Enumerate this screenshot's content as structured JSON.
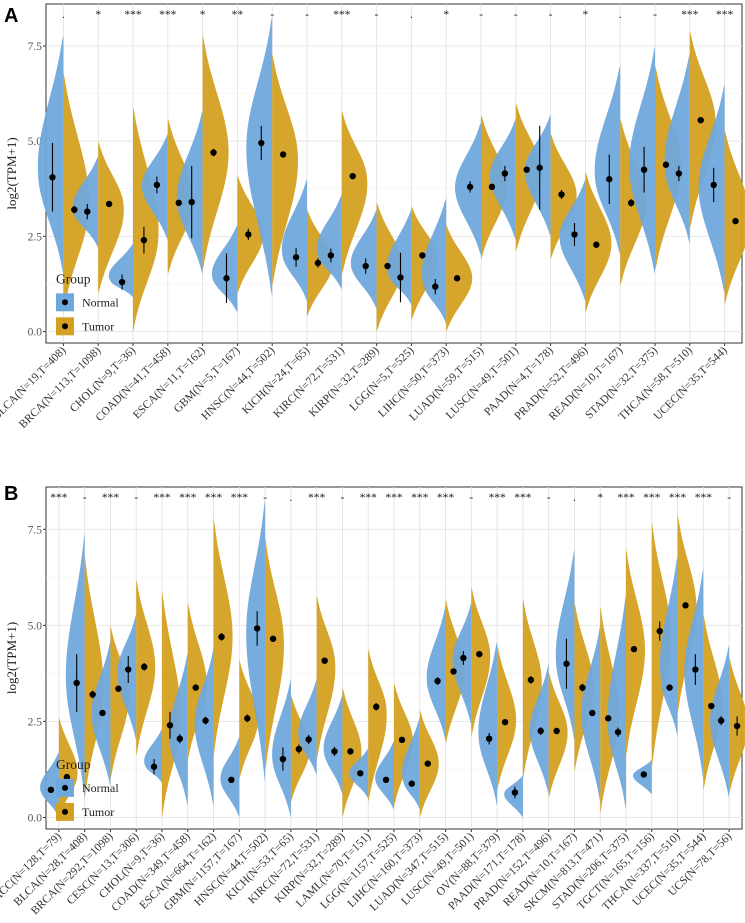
{
  "colors": {
    "normal": "#6fa8dc",
    "tumor": "#d4a021",
    "point": "#000000"
  },
  "chart_data": [
    {
      "type": "split-violin",
      "panel": "A",
      "title": "",
      "xlabel": "",
      "ylabel": "log2(TPM+1)",
      "ylim": [
        -0.3,
        8.6
      ],
      "yticks": [
        0.0,
        2.5,
        5.0,
        7.5
      ],
      "ytick_labels": [
        "0.0",
        "2.5",
        "5.0",
        "7.5"
      ],
      "legend": {
        "title": "Group",
        "items": [
          "Normal",
          "Tumor"
        ],
        "position": "bottom-left"
      },
      "categories": [
        "BLCA(N=19,T=408)",
        "BRCA(N=113,T=1098)",
        "CHOL(N=9,T=36)",
        "COAD(N=41,T=458)",
        "ESCA(N=11,T=162)",
        "GBM(N=5,T=167)",
        "HNSC(N=44,T=502)",
        "KICH(N=24,T=65)",
        "KIRC(N=72,T=531)",
        "KIRP(N=32,T=289)",
        "LGG(N=5,T=525)",
        "LIHC(N=50,T=373)",
        "LUAD(N=59,T=515)",
        "LUSC(N=49,T=501)",
        "PAAD(N=4,T=178)",
        "PRAD(N=52,T=496)",
        "READ(N=10,T=167)",
        "STAD(N=32,T=375)",
        "THCA(N=58,T=510)",
        "UCEC(N=35,T=544)"
      ],
      "significance": [
        ".",
        "*",
        "***",
        "***",
        "*",
        "**",
        "-",
        "-",
        "***",
        "-",
        ".",
        "*",
        "-",
        "-",
        "-",
        "*",
        ".",
        "-",
        "***",
        "***"
      ],
      "normal_mean": [
        4.05,
        3.15,
        1.3,
        3.85,
        3.4,
        1.4,
        4.95,
        1.95,
        2.0,
        1.72,
        1.42,
        1.18,
        3.8,
        4.15,
        4.3,
        2.55,
        4.0,
        4.25,
        4.15,
        3.85
      ],
      "normal_sd": [
        0.9,
        0.2,
        0.2,
        0.22,
        0.95,
        0.65,
        0.45,
        0.25,
        0.18,
        0.2,
        0.65,
        0.2,
        0.15,
        0.2,
        1.1,
        0.3,
        0.65,
        0.6,
        0.2,
        0.45
      ],
      "normal_min": [
        1.5,
        2.2,
        0.9,
        2.4,
        1.5,
        0.5,
        0.9,
        0.8,
        1.1,
        0.6,
        0.7,
        0.2,
        2.0,
        2.4,
        2.5,
        0.8,
        2.0,
        1.5,
        2.3,
        1.0
      ],
      "normal_max": [
        7.8,
        4.6,
        2.3,
        5.2,
        5.8,
        2.8,
        8.3,
        4.0,
        3.6,
        3.2,
        3.2,
        3.5,
        5.5,
        5.6,
        5.7,
        4.0,
        7.0,
        7.5,
        7.3,
        6.5
      ],
      "tumor_mean": [
        3.2,
        3.35,
        2.4,
        3.38,
        4.7,
        2.55,
        4.65,
        1.8,
        4.08,
        1.72,
        2.0,
        1.4,
        3.8,
        4.25,
        3.6,
        2.28,
        3.38,
        4.38,
        5.55,
        2.9
      ],
      "tumor_sd": [
        0.1,
        0.05,
        0.35,
        0.07,
        0.1,
        0.15,
        0.05,
        0.12,
        0.05,
        0.05,
        0.05,
        0.05,
        0.04,
        0.04,
        0.12,
        0.04,
        0.1,
        0.07,
        0.06,
        0.05
      ],
      "tumor_min": [
        0.5,
        1.0,
        0.0,
        1.5,
        1.6,
        1.0,
        1.2,
        0.4,
        1.5,
        0.0,
        0.3,
        0.0,
        1.9,
        2.1,
        1.9,
        0.5,
        1.2,
        1.6,
        2.7,
        0.7
      ],
      "tumor_max": [
        6.8,
        5.0,
        5.9,
        5.6,
        7.8,
        4.1,
        7.3,
        3.2,
        5.8,
        3.4,
        3.3,
        2.8,
        5.7,
        6.0,
        5.2,
        4.2,
        5.6,
        7.0,
        7.9,
        5.3
      ]
    },
    {
      "type": "split-violin",
      "panel": "B",
      "title": "",
      "xlabel": "",
      "ylabel": "log2(TPM+1)",
      "ylim": [
        -0.3,
        8.6
      ],
      "yticks": [
        0.0,
        2.5,
        5.0,
        7.5
      ],
      "ytick_labels": [
        "0.0",
        "2.5",
        "5.0",
        "7.5"
      ],
      "legend": {
        "title": "Group",
        "items": [
          "Normal",
          "Tumor"
        ],
        "position": "bottom-left"
      },
      "categories": [
        "ACC(N=128,T=79)",
        "BLCA(N=28,T=408)",
        "BRCA(N=292,T=1098)",
        "CESC(N=13,T=306)",
        "CHOL(N=9,T=36)",
        "COAD(N=349,T=458)",
        "ESCA(N=664,T=162)",
        "GBM(N=1157,T=167)",
        "HNSC(N=44,T=502)",
        "KICH(N=53,T=65)",
        "KIRC(N=72,T=531)",
        "KIRP(N=32,T=289)",
        "LAML(N=70,T=151)",
        "LGG(N=1157,T=525)",
        "LIHC(N=160,T=373)",
        "LUAD(N=347,T=515)",
        "LUSC(N=49,T=501)",
        "OV(N=88,T=379)",
        "PAAD(N=171,T=178)",
        "PRAD(N=152,T=496)",
        "READ(N=10,T=167)",
        "SKCM(N=813,T=471)",
        "STAD(N=206,T=375)",
        "TGCT(N=165,T=156)",
        "THCA(N=337,T=510)",
        "UCEC(N=35,T=544)",
        "UCS(N=78,T=56)"
      ],
      "significance": [
        "***",
        "-",
        "***",
        "-",
        "***",
        "***",
        "***",
        "***",
        "-",
        ".",
        "***",
        "-",
        "***",
        "***",
        "***",
        "***",
        "-",
        "***",
        "***",
        "-",
        ".",
        "*",
        "***",
        "***",
        "***",
        "***",
        "-"
      ],
      "normal_mean": [
        0.72,
        3.5,
        2.72,
        3.85,
        1.32,
        2.05,
        2.52,
        0.98,
        4.92,
        1.52,
        2.03,
        1.72,
        1.15,
        0.98,
        0.88,
        3.55,
        4.15,
        2.05,
        0.65,
        2.25,
        4.0,
        2.72,
        2.22,
        1.12,
        3.38,
        3.85,
        2.52
      ],
      "normal_sd": [
        0.05,
        0.75,
        0.08,
        0.35,
        0.2,
        0.12,
        0.1,
        0.04,
        0.45,
        0.3,
        0.12,
        0.12,
        0.05,
        0.04,
        0.06,
        0.1,
        0.18,
        0.15,
        0.15,
        0.1,
        0.65,
        0.05,
        0.12,
        0.05,
        0.08,
        0.4,
        0.12
      ],
      "normal_min": [
        0.0,
        0.5,
        0.8,
        2.0,
        0.9,
        0.3,
        0.3,
        0.0,
        0.9,
        0.0,
        1.1,
        0.6,
        0.5,
        0.2,
        0.2,
        2.0,
        2.4,
        0.3,
        0.0,
        0.6,
        2.0,
        0.4,
        0.2,
        0.6,
        2.1,
        1.0,
        0.5
      ],
      "normal_max": [
        1.7,
        7.4,
        4.6,
        5.3,
        2.3,
        4.3,
        4.4,
        2.1,
        8.3,
        3.6,
        3.6,
        3.2,
        1.8,
        2.0,
        2.6,
        5.5,
        5.6,
        4.6,
        1.1,
        4.0,
        7.0,
        5.0,
        5.8,
        1.5,
        6.8,
        6.5,
        4.5
      ],
      "tumor_mean": [
        1.05,
        3.2,
        3.35,
        3.92,
        2.4,
        3.38,
        4.7,
        2.58,
        4.65,
        1.78,
        4.08,
        1.72,
        2.88,
        2.02,
        1.4,
        3.8,
        4.25,
        2.48,
        3.58,
        2.25,
        3.38,
        2.58,
        4.38,
        4.85,
        5.52,
        2.9,
        2.38
      ],
      "tumor_sd": [
        0.05,
        0.1,
        0.05,
        0.1,
        0.35,
        0.07,
        0.1,
        0.1,
        0.05,
        0.12,
        0.05,
        0.05,
        0.1,
        0.05,
        0.05,
        0.04,
        0.04,
        0.04,
        0.1,
        0.04,
        0.1,
        0.04,
        0.07,
        0.25,
        0.06,
        0.05,
        0.25
      ],
      "tumor_min": [
        0.0,
        0.5,
        1.0,
        1.6,
        0.0,
        1.5,
        1.6,
        1.0,
        1.2,
        0.4,
        1.5,
        0.0,
        0.4,
        0.3,
        0.0,
        1.9,
        2.1,
        0.7,
        1.0,
        0.5,
        1.2,
        0.1,
        1.6,
        1.3,
        2.7,
        0.7,
        0.6
      ],
      "tumor_max": [
        2.6,
        6.8,
        5.0,
        6.2,
        5.9,
        5.6,
        7.8,
        4.1,
        7.3,
        3.2,
        5.8,
        3.4,
        4.4,
        3.5,
        2.8,
        5.7,
        6.0,
        4.5,
        5.7,
        3.8,
        5.6,
        5.5,
        7.0,
        7.7,
        7.9,
        5.3,
        4.2
      ]
    }
  ]
}
